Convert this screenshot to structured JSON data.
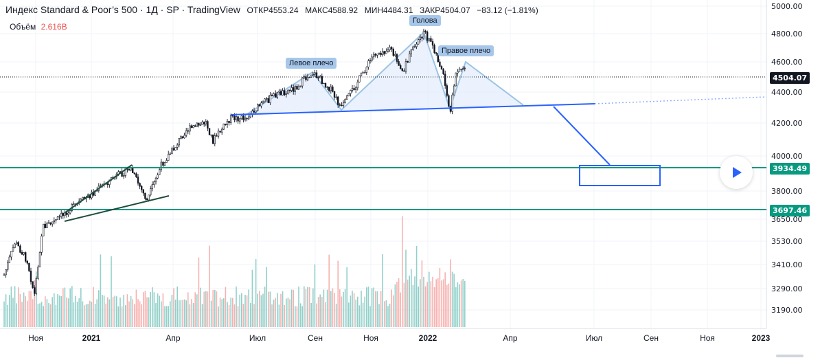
{
  "legend": {
    "title": "Индекс Standard & Poor’s 500 · 1Д · SP  · TradingView",
    "open_label": "ОТКР",
    "open": "4553.24",
    "high_label": "МАКС",
    "high": "4588.92",
    "low_label": "МИН",
    "low": "4484.31",
    "close_label": "ЗАКР",
    "close": "4504.07",
    "change": "−83.12 (−1.81%)"
  },
  "volume": {
    "label": "Объём",
    "value": "2.616B"
  },
  "price_scale": {
    "ticks": [
      "5000.00",
      "4800.00",
      "4600.00",
      "4400.00",
      "4200.00",
      "4000.00",
      "3800.00",
      "3650.00",
      "3530.00",
      "3410.00",
      "3290.00",
      "3190.00"
    ],
    "badges": [
      {
        "text": "4504.07",
        "color": "#131722"
      },
      {
        "text": "3934.49",
        "color": "#089981"
      },
      {
        "text": "3697.46",
        "color": "#089981"
      }
    ]
  },
  "time_scale": {
    "ticks": [
      {
        "text": "Ноя",
        "year": false
      },
      {
        "text": "2021",
        "year": true
      },
      {
        "text": "Апр",
        "year": false
      },
      {
        "text": "Июл",
        "year": false
      },
      {
        "text": "Сен",
        "year": false
      },
      {
        "text": "Ноя",
        "year": false
      },
      {
        "text": "2022",
        "year": true
      },
      {
        "text": "Апр",
        "year": false
      },
      {
        "text": "Июл",
        "year": false
      },
      {
        "text": "Сен",
        "year": false
      },
      {
        "text": "Ноя",
        "year": false
      },
      {
        "text": "2023",
        "year": true
      }
    ]
  },
  "pattern_labels": {
    "left_shoulder": "Левое плечо",
    "head": "Голова",
    "right_shoulder": "Правое плечо"
  },
  "colors": {
    "support": "#089981",
    "neckline": "#2962ff",
    "pattern_fill": "#dbe8fb",
    "pattern_stroke": "#9cc3e6",
    "wedge": "#1e4d3b",
    "candle": "#131722",
    "vol_up": "#7fc8c0",
    "vol_down": "#f5a4a2",
    "target_box": "#2962ff"
  },
  "controls": {
    "play_icon": "play-icon"
  }
}
